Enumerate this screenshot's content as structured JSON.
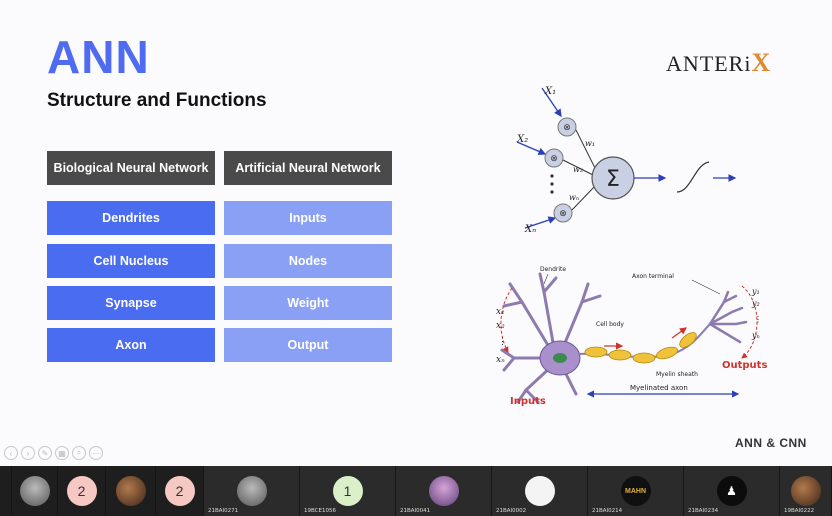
{
  "slide": {
    "title": "ANN",
    "subtitle": "Structure and Functions",
    "logo_text": "ANTERi",
    "logo_mark": "X",
    "footer_tag": "ANN & CNN",
    "table": {
      "headers": [
        "Biological Neural Network",
        "Artificial Neural Network"
      ],
      "rows": [
        [
          "Dendrites",
          "Inputs"
        ],
        [
          "Cell Nucleus",
          "Nodes"
        ],
        [
          "Synapse",
          "Weight"
        ],
        [
          "Axon",
          "Output"
        ]
      ]
    },
    "perceptron": {
      "inputs": [
        "X₁",
        "X₂",
        "Xₙ"
      ],
      "weights": [
        "w₁",
        "w₂",
        "wₙ"
      ],
      "sum_symbol": "Σ"
    },
    "neuron": {
      "labels": {
        "dendrite": "Dendrite",
        "axon_terminal": "Axon terminal",
        "cell_body": "Cell body",
        "myelin": "Myelin sheath",
        "myelinated_axon": "Myelinated axon",
        "inputs": "Inputs",
        "outputs": "Outputs"
      },
      "x_labels": [
        "x₁",
        "x₂",
        "⋮",
        "xₙ"
      ],
      "y_labels": [
        "y₁",
        "y₂",
        "⋮",
        "yₙ"
      ]
    },
    "colors": {
      "title": "#4f6bf2",
      "bio_cell": "#4a6cf0",
      "art_cell": "#8aa0f5",
      "header": "#4a4a4a",
      "logo_mark": "#e08a2e"
    }
  },
  "participants": [
    {
      "kind": "photo2",
      "initial": "",
      "label": ""
    },
    {
      "kind": "pink",
      "initial": "2",
      "label": ""
    },
    {
      "kind": "photo",
      "initial": "",
      "label": ""
    },
    {
      "kind": "pink",
      "initial": "2",
      "label": ""
    },
    {
      "kind": "photo2",
      "initial": "",
      "label": "21BAI0271"
    },
    {
      "kind": "green",
      "initial": "1",
      "label": "19BCE1056"
    },
    {
      "kind": "photo3",
      "initial": "",
      "label": "21BAI0041"
    },
    {
      "kind": "white",
      "initial": "",
      "label": "21BAI0002"
    },
    {
      "kind": "gold",
      "initial": "MAHN",
      "label": "21BAI0214"
    },
    {
      "kind": "black",
      "initial": "♟",
      "label": "21BAI0234"
    },
    {
      "kind": "photo",
      "initial": "",
      "label": "19BAI0222"
    }
  ]
}
